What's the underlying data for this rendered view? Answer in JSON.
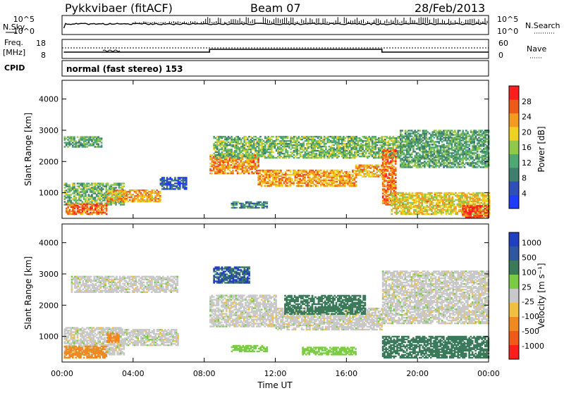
{
  "header": {
    "station": "Pykkvibaer (fitACF)",
    "beam": "Beam 07",
    "date": "28/Feb/2013"
  },
  "strip": {
    "nsky_label": "N.Sky",
    "nsearch_label": "N.Search",
    "freq_label_1": "Freq.",
    "freq_label_2": "[MHz]",
    "nave_label": "Nave",
    "cpid_label": "CPID",
    "cpid_text": "normal (fast stereo) 153",
    "noise_ticks_left": [
      "10^5",
      "10^0"
    ],
    "noise_ticks_right": [
      "10^5",
      "10^0"
    ],
    "freq_ticks": [
      "18",
      "8"
    ],
    "nave_ticks": [
      "60",
      "0"
    ]
  },
  "colors": {
    "scatter_gray": "#c8c8c8",
    "low_power": "#1e3cff",
    "high_power": "#ff1e1e"
  },
  "chart_data": [
    {
      "type": "heatmap",
      "name": "power",
      "ylabel": "Slant Range [km]",
      "xlabel": "Time UT",
      "x_ticks": [
        "00:00",
        "04:00",
        "08:00",
        "12:00",
        "16:00",
        "20:00",
        "00:00"
      ],
      "xlim_hours": [
        0,
        24
      ],
      "y_ticks": [
        "1000",
        "2000",
        "3000",
        "4000"
      ],
      "ylim_km": [
        180,
        4600
      ],
      "colorbar_label": "Power [dB]",
      "colorbar_ticks": [
        "4",
        "8",
        "12",
        "16",
        "20",
        "24",
        "28"
      ],
      "colorbar_range": [
        0,
        32
      ],
      "bands": [
        {
          "t0": 0.1,
          "t1": 2.2,
          "r0": 2450,
          "r1": 2800,
          "v": 13
        },
        {
          "t0": 0.1,
          "t1": 3.5,
          "r0": 600,
          "r1": 1300,
          "v": 14
        },
        {
          "t0": 0.2,
          "t1": 2.5,
          "r0": 300,
          "r1": 650,
          "v": 26
        },
        {
          "t0": 2.5,
          "t1": 5.5,
          "r0": 700,
          "r1": 1100,
          "v": 22
        },
        {
          "t0": 5.5,
          "t1": 7.0,
          "r0": 1100,
          "r1": 1500,
          "v": 5
        },
        {
          "t0": 8.3,
          "t1": 11.0,
          "r0": 1600,
          "r1": 2200,
          "v": 24
        },
        {
          "t0": 11.0,
          "t1": 16.5,
          "r0": 1200,
          "r1": 1700,
          "v": 23
        },
        {
          "t0": 16.5,
          "t1": 18.0,
          "r0": 1500,
          "r1": 1900,
          "v": 22
        },
        {
          "t0": 8.5,
          "t1": 19.0,
          "r0": 2100,
          "r1": 2800,
          "v": 14
        },
        {
          "t0": 18.0,
          "t1": 18.8,
          "r0": 600,
          "r1": 2400,
          "v": 25
        },
        {
          "t0": 18.5,
          "t1": 24.0,
          "r0": 300,
          "r1": 1000,
          "v": 20
        },
        {
          "t0": 19.0,
          "t1": 24.0,
          "r0": 1800,
          "r1": 3000,
          "v": 12
        },
        {
          "t0": 22.5,
          "t1": 24.0,
          "r0": 200,
          "r1": 600,
          "v": 27
        },
        {
          "t0": 9.5,
          "t1": 11.5,
          "r0": 500,
          "r1": 700,
          "v": 10
        }
      ]
    },
    {
      "type": "heatmap",
      "name": "velocity",
      "ylabel": "Slant Range [km]",
      "xlabel": "Time UT",
      "x_ticks": [
        "00:00",
        "04:00",
        "08:00",
        "12:00",
        "16:00",
        "20:00",
        "00:00"
      ],
      "xlim_hours": [
        0,
        24
      ],
      "y_ticks": [
        "1000",
        "2000",
        "3000",
        "4000"
      ],
      "ylim_km": [
        180,
        4600
      ],
      "colorbar_label": "Velocity [m s⁻¹]",
      "colorbar_ticks": [
        "1000",
        "500",
        "100",
        "25",
        "-25",
        "-100",
        "-500",
        "-1000"
      ],
      "bands": [
        {
          "t0": 0.5,
          "t1": 6.5,
          "r0": 2400,
          "r1": 2900,
          "v": 0
        },
        {
          "t0": 0.1,
          "t1": 3.5,
          "r0": 400,
          "r1": 1300,
          "v": 0
        },
        {
          "t0": 0.1,
          "t1": 2.5,
          "r0": 300,
          "r1": 700,
          "v": -300
        },
        {
          "t0": 2.5,
          "t1": 3.2,
          "r0": 800,
          "r1": 1100,
          "v": -300
        },
        {
          "t0": 3.5,
          "t1": 6.5,
          "r0": 700,
          "r1": 1200,
          "v": 0
        },
        {
          "t0": 8.3,
          "t1": 12.0,
          "r0": 1300,
          "r1": 2300,
          "v": 0
        },
        {
          "t0": 12.0,
          "t1": 18.0,
          "r0": 1200,
          "r1": 1900,
          "v": 0
        },
        {
          "t0": 8.5,
          "t1": 10.5,
          "r0": 2700,
          "r1": 3200,
          "v": 500
        },
        {
          "t0": 12.5,
          "t1": 17.0,
          "r0": 1700,
          "r1": 2300,
          "v": 200
        },
        {
          "t0": 18.0,
          "t1": 24.0,
          "r0": 1400,
          "r1": 3100,
          "v": 0
        },
        {
          "t0": 18.0,
          "t1": 24.0,
          "r0": 300,
          "r1": 1000,
          "v": 150
        },
        {
          "t0": 9.5,
          "t1": 11.5,
          "r0": 500,
          "r1": 700,
          "v": 60
        },
        {
          "t0": 13.5,
          "t1": 16.5,
          "r0": 400,
          "r1": 650,
          "v": 60
        }
      ]
    }
  ]
}
